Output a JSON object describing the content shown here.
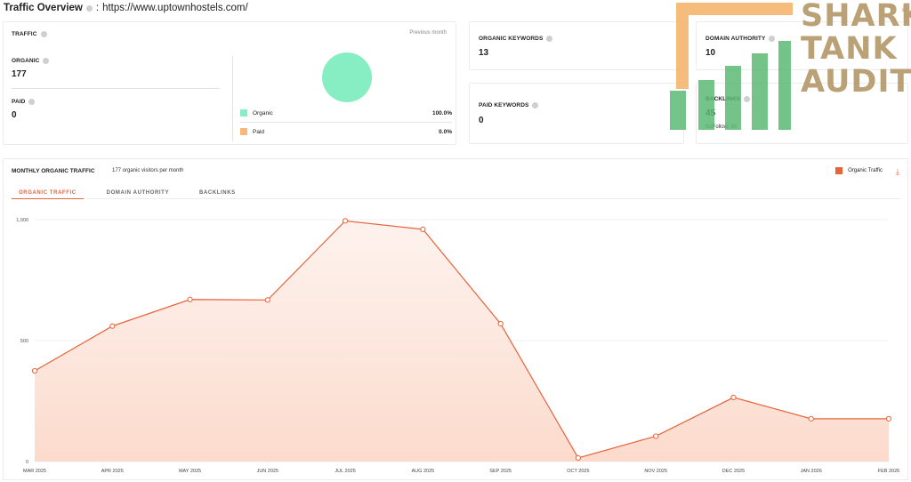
{
  "header": {
    "title": "Traffic Overview",
    "sep": ":",
    "url": "https://www.uptownhostels.com/"
  },
  "traffic": {
    "label": "TRAFFIC",
    "period": "Previous month",
    "organic": {
      "label": "ORGANIC",
      "value": "177"
    },
    "paid": {
      "label": "PAID",
      "value": "0"
    },
    "legend": [
      {
        "label": "Organic",
        "pct": "100.0%",
        "color": "#87eec4"
      },
      {
        "label": "Paid",
        "pct": "0.0%",
        "color": "#f7b878"
      }
    ]
  },
  "organic_keywords": {
    "label": "ORGANIC KEYWORDS",
    "value": "13"
  },
  "paid_keywords": {
    "label": "PAID KEYWORDS",
    "value": "0"
  },
  "domain_authority": {
    "label": "DOMAIN AUTHORITY",
    "value": "10"
  },
  "backlinks": {
    "label": "BACKLINKS",
    "value": "45",
    "nofollow": "NoFollow: 30"
  },
  "watermark": {
    "line1": "SHARK",
    "line2": "TANK",
    "line3": "AUDITS"
  },
  "monthly": {
    "title": "MONTHLY ORGANIC TRAFFIC",
    "subtitle": "177 organic visitors per month",
    "legend": "Organic Traffic",
    "tabs": [
      "ORGANIC TRAFFIC",
      "DOMAIN AUTHORITY",
      "BACKLINKS"
    ]
  },
  "chart_data": {
    "type": "area",
    "categories": [
      "MAR 2025",
      "APR 2025",
      "MAY 2025",
      "JUN 2025",
      "JUL 2025",
      "AUG 2025",
      "SEP 2025",
      "OCT 2025",
      "NOV 2025",
      "DEC 2025",
      "JAN 2026",
      "FEB 2026"
    ],
    "series": [
      {
        "name": "Organic Traffic",
        "values": [
          375,
          560,
          670,
          668,
          995,
          960,
          570,
          15,
          105,
          265,
          177,
          177
        ],
        "color": "#e8623a"
      }
    ],
    "yticks": [
      "1,000",
      "500",
      "0"
    ],
    "ylim": [
      0,
      1000
    ],
    "grid": true
  }
}
